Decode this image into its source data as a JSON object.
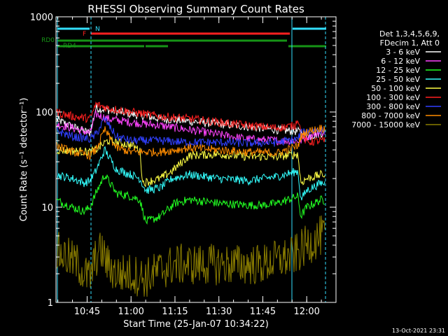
{
  "chart_data": {
    "type": "line",
    "title": "RHESSI Observing Summary Count Rates",
    "xlabel": "Start Time (25-Jan-07 10:34:22)",
    "ylabel": "Count Rate (s⁻¹ detector⁻¹)",
    "y_scale": "log",
    "ylim": [
      1,
      1000
    ],
    "xlim": [
      "10:34:22",
      "12:10:00"
    ],
    "x_ticks": [
      "10:45",
      "11:00",
      "11:15",
      "11:30",
      "11:45",
      "12:00"
    ],
    "y_ticks": [
      "1",
      "10",
      "100",
      "1000"
    ],
    "legend_header": [
      "Det 1,3,4,5,6,9,",
      "FDecim 1, Att 0"
    ],
    "legend_position": "right",
    "timestamp": "13-Oct-2021 23:31",
    "flags": [
      {
        "label": "N",
        "color": "#33e0ff"
      },
      {
        "label": "F",
        "color": "#ff2020"
      },
      {
        "label": "RD0",
        "color": "#169416"
      },
      {
        "label": "RD4",
        "color": "#169416"
      }
    ],
    "series": [
      {
        "name": "3 - 6 keV",
        "color": "#ffffff",
        "x": [
          "10:34",
          "10:40",
          "10:46",
          "10:48",
          "10:52",
          "11:00",
          "11:10",
          "11:20",
          "11:30",
          "11:40",
          "11:50",
          "11:58",
          "12:00",
          "12:05",
          "12:09"
        ],
        "values": [
          85,
          70,
          60,
          110,
          105,
          95,
          85,
          80,
          75,
          70,
          65,
          62,
          55,
          60,
          62
        ]
      },
      {
        "name": "6 - 12 keV",
        "color": "#ff44ff",
        "x": [
          "10:34",
          "10:40",
          "10:46",
          "10:48",
          "10:52",
          "11:00",
          "11:10",
          "11:20",
          "11:30",
          "11:40",
          "11:50",
          "11:58",
          "12:00",
          "12:05",
          "12:09"
        ],
        "values": [
          75,
          68,
          60,
          95,
          85,
          78,
          72,
          65,
          58,
          52,
          50,
          50,
          55,
          62,
          60
        ]
      },
      {
        "name": "12 - 25 keV",
        "color": "#22ff22",
        "x": [
          "10:34",
          "10:40",
          "10:44",
          "10:46",
          "10:48",
          "10:51",
          "10:55",
          "11:00",
          "11:03",
          "11:05",
          "11:10",
          "11:15",
          "11:20",
          "11:30",
          "11:40",
          "11:45",
          "11:50",
          "11:57",
          "11:58",
          "12:00",
          "12:05",
          "12:09"
        ],
        "values": [
          12,
          10,
          9,
          10,
          14,
          22,
          14,
          13,
          12,
          7,
          8,
          11,
          12,
          11,
          10.5,
          10.5,
          11,
          13,
          8,
          10,
          12,
          11
        ]
      },
      {
        "name": "25 - 50 keV",
        "color": "#33ffff",
        "x": [
          "10:34",
          "10:40",
          "10:44",
          "10:46",
          "10:48",
          "10:51",
          "10:55",
          "11:00",
          "11:03",
          "11:05",
          "11:10",
          "11:14",
          "11:20",
          "11:30",
          "11:40",
          "11:45",
          "11:50",
          "11:57",
          "11:58",
          "12:00",
          "12:05",
          "12:09"
        ],
        "values": [
          22,
          20,
          18,
          19,
          24,
          40,
          25,
          22,
          20,
          15,
          16,
          20,
          22,
          20,
          19,
          20,
          21,
          24,
          12,
          15,
          18,
          17
        ]
      },
      {
        "name": "50 - 100 keV",
        "color": "#ffff44",
        "x": [
          "10:34",
          "10:46",
          "10:48",
          "10:52",
          "11:00",
          "11:03",
          "11:04",
          "11:10",
          "11:14",
          "11:20",
          "11:30",
          "11:40",
          "11:50",
          "11:57",
          "11:58",
          "12:00",
          "12:05",
          "12:09"
        ],
        "values": [
          40,
          38,
          40,
          50,
          45,
          40,
          18,
          20,
          24,
          35,
          36,
          34,
          34,
          36,
          18,
          20,
          22,
          22
        ]
      },
      {
        "name": "100 - 300 keV",
        "color": "#ff2020",
        "x": [
          "10:34",
          "10:40",
          "10:46",
          "10:48",
          "10:52",
          "11:00",
          "11:10",
          "11:20",
          "11:30",
          "11:40",
          "11:50",
          "11:56",
          "11:57",
          "11:58",
          "12:00",
          "12:05",
          "12:09"
        ],
        "values": [
          100,
          90,
          85,
          120,
          110,
          100,
          90,
          85,
          78,
          72,
          68,
          72,
          88,
          60,
          48,
          50,
          48
        ]
      },
      {
        "name": "300 - 800 keV",
        "color": "#3040ff",
        "x": [
          "10:34",
          "10:40",
          "10:46",
          "10:48",
          "10:51",
          "10:55",
          "11:00",
          "11:10",
          "11:20",
          "11:30",
          "11:40",
          "11:50",
          "11:57",
          "11:58",
          "12:00",
          "12:05",
          "12:09"
        ],
        "values": [
          65,
          55,
          52,
          58,
          85,
          55,
          50,
          50,
          48,
          48,
          47,
          48,
          52,
          60,
          62,
          65,
          60
        ]
      },
      {
        "name": "800 - 7000 keV",
        "color": "#ff8c00",
        "x": [
          "10:34",
          "10:40",
          "10:46",
          "10:48",
          "10:51",
          "10:55",
          "11:00",
          "11:10",
          "11:20",
          "11:30",
          "11:40",
          "11:50",
          "11:57",
          "11:58",
          "12:00",
          "12:05",
          "12:09"
        ],
        "values": [
          45,
          38,
          35,
          40,
          65,
          42,
          38,
          38,
          42,
          40,
          38,
          37,
          44,
          55,
          62,
          68,
          65
        ]
      },
      {
        "name": "7000 - 15000 keV",
        "color": "#8a7d00",
        "x": [
          "10:34",
          "10:38",
          "10:42",
          "10:44",
          "10:46",
          "10:48",
          "10:50",
          "10:52",
          "10:55",
          "11:00",
          "11:05",
          "11:10",
          "11:15",
          "11:20",
          "11:30",
          "11:40",
          "11:45",
          "11:50",
          "11:55",
          "11:58",
          "12:00",
          "12:05",
          "12:09"
        ],
        "values": [
          3.5,
          3.0,
          2.5,
          2.0,
          1.8,
          3.0,
          3.5,
          2.5,
          2.0,
          2.0,
          1.8,
          2.2,
          2.5,
          2.5,
          2.5,
          2.5,
          2.5,
          2.8,
          3.0,
          3.5,
          4.0,
          5.0,
          5.5
        ]
      }
    ]
  }
}
